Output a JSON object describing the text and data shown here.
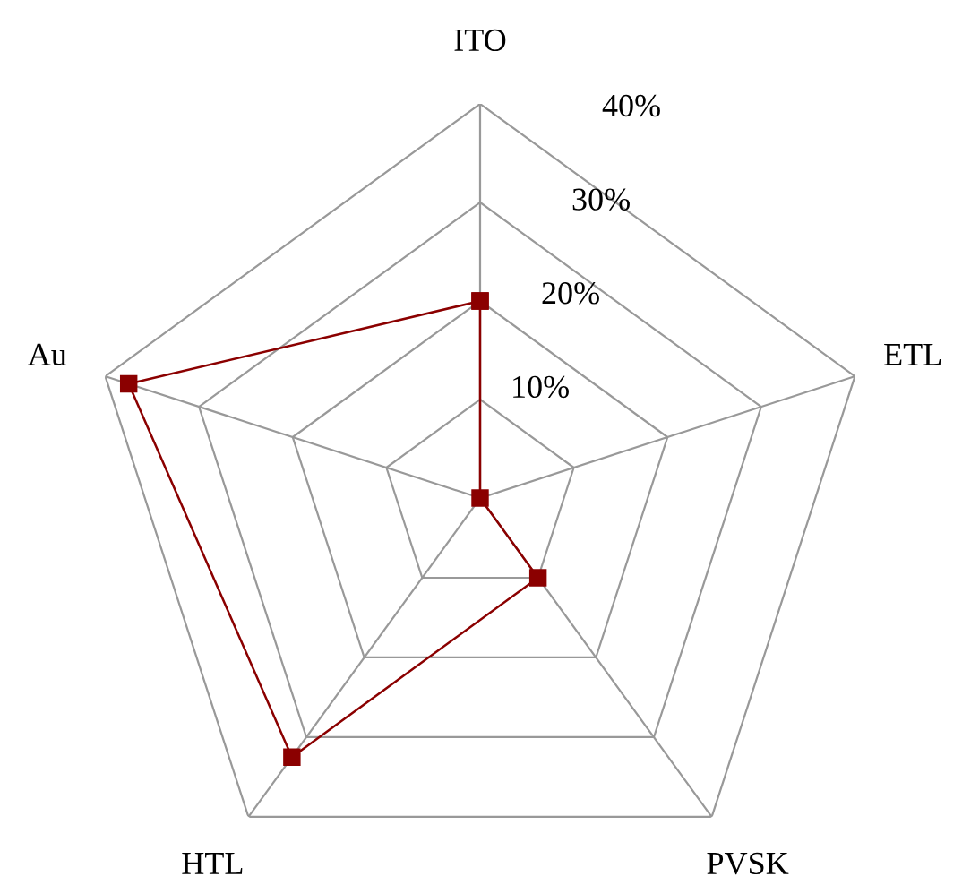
{
  "chart_data": {
    "type": "radar",
    "categories": [
      "ITO",
      "ETL",
      "PVSK",
      "HTL",
      "Au"
    ],
    "series": [
      {
        "color": "#8b0000",
        "values": [
          20,
          0,
          10,
          32.5,
          37.5
        ]
      }
    ],
    "ylim": [
      0,
      40
    ],
    "yticks": [
      {
        "value": 10,
        "label": "10%"
      },
      {
        "value": 20,
        "label": "20%"
      },
      {
        "value": 30,
        "label": "30%"
      },
      {
        "value": 40,
        "label": "40%"
      }
    ],
    "grid": true,
    "marker": "square",
    "line_style": "solid"
  }
}
